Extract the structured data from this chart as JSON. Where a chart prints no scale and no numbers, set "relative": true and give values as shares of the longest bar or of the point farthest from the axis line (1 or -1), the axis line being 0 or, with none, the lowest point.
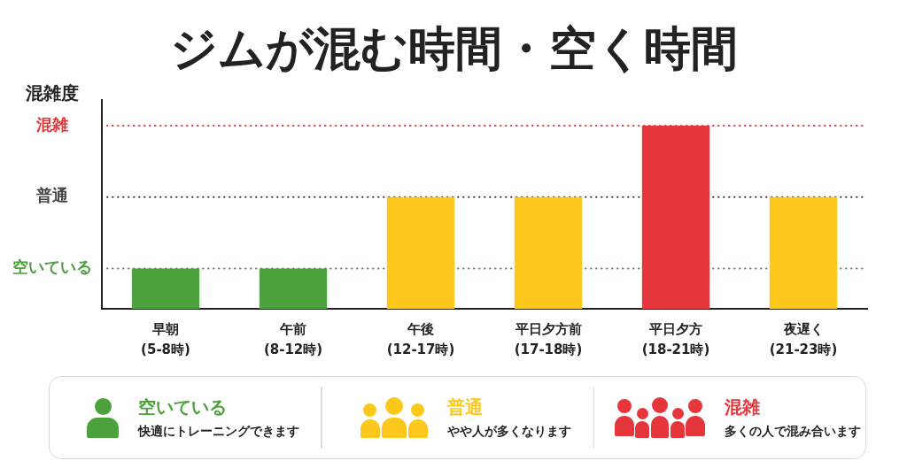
{
  "chart_data": {
    "type": "bar",
    "title": "ジムが混む時間・空く時間",
    "ylabel": "混雑度",
    "categories": [
      "早朝\n(5-8時)",
      "午前\n(8-12時)",
      "午後\n(12-17時)",
      "平日夕方前\n(17-18時)",
      "平日夕方\n(18-21時)",
      "夜遅く\n(21-23時)"
    ],
    "series": [
      {
        "name": "空いている",
        "color": "#4ba13b",
        "values": [
          0.22,
          0.22,
          null,
          null,
          null,
          null
        ]
      },
      {
        "name": "普通",
        "color": "#fdc81c",
        "values": [
          null,
          null,
          0.61,
          0.61,
          null,
          0.61
        ]
      },
      {
        "name": "混雑",
        "color": "#e5363b",
        "values": [
          null,
          null,
          null,
          null,
          1,
          null
        ]
      }
    ],
    "relative": true,
    "ref_lines": [
      {
        "axis": "y",
        "value": 0.22,
        "label": "空いている",
        "color": "#4ba13b",
        "line_style": "dotted"
      },
      {
        "axis": "y",
        "value": 0.61,
        "label": "普通",
        "color": "#444444",
        "line_style": "dotted"
      },
      {
        "axis": "y",
        "value": 1,
        "label": "混雑",
        "color": "#e5363b",
        "line_style": "dotted"
      }
    ],
    "legend": "bottom",
    "annotations": [
      "快適にトレーニングできます",
      "やや人が多くなります",
      "多くの人で混み合います"
    ]
  }
}
